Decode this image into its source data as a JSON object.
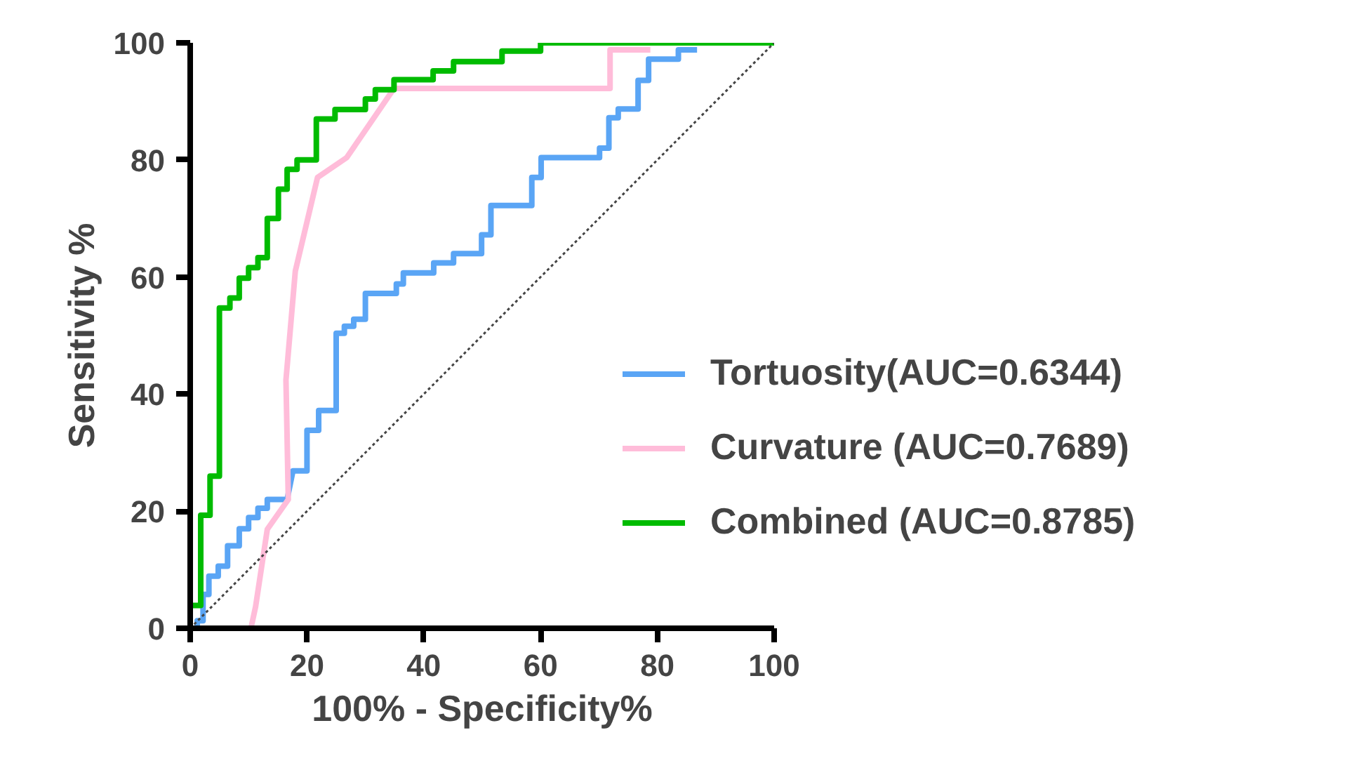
{
  "chart_data": {
    "type": "line",
    "xlabel": "100% - Specificity%",
    "ylabel": "Sensitivity %",
    "xlim": [
      0,
      100
    ],
    "ylim": [
      0,
      100
    ],
    "xticks": [
      0,
      20,
      40,
      60,
      80,
      100
    ],
    "yticks": [
      0,
      20,
      40,
      60,
      80,
      100
    ],
    "legend": "right",
    "line_style": "solid",
    "marker": "none",
    "series": [
      {
        "name": "Tortuosity(AUC=0.6344)",
        "color": "#5aa5f5",
        "x": [
          0,
          1.2,
          1.2,
          2.2,
          2.2,
          3.2,
          3.2,
          4.8,
          4.8,
          6.4,
          6.4,
          8.4,
          8.4,
          10,
          10,
          11.6,
          11.6,
          13.2,
          13.2,
          16.6,
          17.6,
          20,
          20,
          22,
          22,
          25,
          25,
          26.4,
          26.4,
          28,
          28,
          30,
          30,
          35.3,
          35.3,
          36.5,
          36.5,
          41.7,
          41.7,
          45.1,
          45.1,
          49.9,
          49.9,
          51.5,
          51.5,
          58.5,
          58.5,
          60.1,
          60.1,
          70.1,
          70.1,
          71.7,
          71.7,
          73.3,
          73.3,
          76.7,
          76.7,
          78.5,
          78.5,
          83.6,
          83.6,
          86.8
        ],
        "values": [
          0,
          0,
          1.3,
          1.3,
          5.8,
          5.8,
          8.9,
          8.9,
          10.6,
          10.6,
          14.1,
          14.1,
          17,
          17,
          18.9,
          18.9,
          20.5,
          20.5,
          22,
          22,
          26.9,
          26.9,
          33.8,
          33.8,
          37.2,
          37.2,
          50.4,
          50.4,
          51.6,
          51.6,
          52.8,
          52.8,
          57.2,
          57.2,
          58.8,
          58.8,
          60.7,
          60.7,
          62.4,
          62.4,
          64,
          64,
          67.2,
          67.2,
          72.2,
          72.2,
          77,
          77,
          80.4,
          80.4,
          82,
          82,
          87.2,
          87.2,
          88.7,
          88.7,
          93.6,
          93.6,
          97.2,
          97.2,
          98.8,
          98.8
        ]
      },
      {
        "name": "Curvature (AUC=0.7689)",
        "color": "#ffbcd9",
        "x": [
          0,
          10.4,
          11.2,
          13.2,
          16.8,
          16.4,
          18,
          21.8,
          26.8,
          34.9,
          71.9,
          71.9,
          78.8
        ],
        "values": [
          0,
          0,
          3.7,
          16.9,
          22,
          42.4,
          61,
          77,
          80.4,
          92.2,
          92.2,
          98.8,
          98.8
        ]
      },
      {
        "name": "Combined (AUC=0.8785)",
        "color": "#00bb00",
        "x": [
          0,
          0,
          1.8,
          1.8,
          3.4,
          3.4,
          5,
          5,
          6.8,
          6.8,
          8.4,
          8.4,
          10,
          10,
          11.6,
          11.6,
          13.2,
          13.2,
          15.1,
          15.1,
          16.6,
          16.6,
          18.3,
          18.3,
          21.6,
          21.6,
          24.8,
          24.8,
          30,
          30,
          31.7,
          31.7,
          34.9,
          34.9,
          41.6,
          41.6,
          45.1,
          45.1,
          53.4,
          53.4,
          60,
          60,
          100
        ],
        "values": [
          0,
          3.9,
          3.9,
          19.3,
          19.3,
          26,
          26,
          54.7,
          54.7,
          56.4,
          56.4,
          59.8,
          59.8,
          61.6,
          61.6,
          63.3,
          63.3,
          70,
          70,
          75,
          75,
          78.4,
          78.4,
          80,
          80,
          87,
          87,
          88.6,
          88.6,
          90.4,
          90.4,
          92,
          92,
          93.7,
          93.7,
          95.2,
          95.2,
          96.8,
          96.8,
          98.6,
          98.6,
          100,
          100
        ]
      },
      {
        "color": "#444444",
        "line_style": "dotted",
        "x": [
          0,
          100
        ],
        "values": [
          0,
          100
        ]
      }
    ]
  }
}
